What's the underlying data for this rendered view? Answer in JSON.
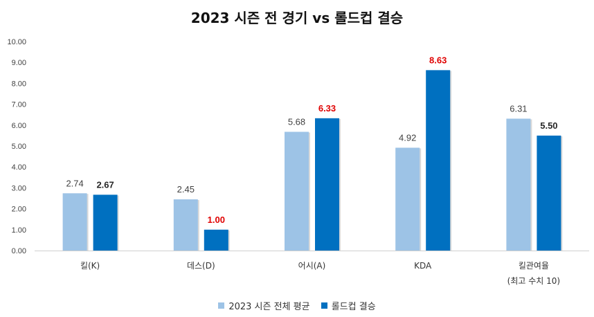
{
  "chart_data": {
    "type": "bar",
    "title": "2023 시즌 전 경기 vs 롤드컵 결승",
    "categories": [
      [
        "킬(K)"
      ],
      [
        "데스(D)"
      ],
      [
        "어시(A)"
      ],
      [
        "KDA"
      ],
      [
        "킬관여율",
        "(최고 수치 10)"
      ]
    ],
    "series": [
      {
        "name": "2023 시즌 전체 평균",
        "values": [
          2.74,
          2.45,
          5.68,
          4.92,
          6.31
        ],
        "color": "#9DC3E6"
      },
      {
        "name": "롤드컵 결승",
        "values": [
          2.67,
          1.0,
          6.33,
          8.63,
          5.5
        ],
        "color": "#0070C0"
      }
    ],
    "value_labels": [
      [
        "2.74",
        "2.45",
        "5.68",
        "4.92",
        "6.31"
      ],
      [
        "2.67",
        "1.00",
        "6.33",
        "8.63",
        "5.50"
      ]
    ],
    "label_colors": [
      [
        "#404040",
        "#404040",
        "#404040",
        "#404040",
        "#404040"
      ],
      [
        "#262626",
        "#E00000",
        "#E00000",
        "#E00000",
        "#262626"
      ]
    ],
    "y_ticks": [
      "0.00",
      "1.00",
      "2.00",
      "3.00",
      "4.00",
      "5.00",
      "6.00",
      "7.00",
      "8.00",
      "9.00",
      "10.00"
    ],
    "ylim": [
      0,
      10
    ],
    "grid": false,
    "legend_position": "bottom"
  }
}
